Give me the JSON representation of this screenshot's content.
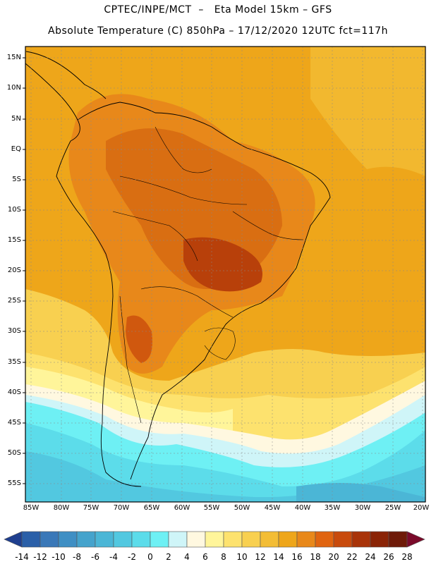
{
  "header": {
    "line1": "CPTEC/INPE/MCT  –   Eta Model 15km – GFS",
    "line2": "Absolute Temperature (C) 850hPa – 17/12/2020 12UTC fct=117h"
  },
  "map": {
    "lat_labels": [
      "15N",
      "10N",
      "5N",
      "EQ",
      "5S",
      "10S",
      "15S",
      "20S",
      "25S",
      "30S",
      "35S",
      "40S",
      "45S",
      "50S",
      "55S"
    ],
    "lon_labels": [
      "85W",
      "80W",
      "75W",
      "70W",
      "65W",
      "60W",
      "55W",
      "50W",
      "45W",
      "40W",
      "35W",
      "30W",
      "25W",
      "20W"
    ]
  },
  "legend": {
    "labels": [
      "-14",
      "-12",
      "-10",
      "-8",
      "-6",
      "-4",
      "-2",
      "0",
      "2",
      "4",
      "6",
      "8",
      "10",
      "12",
      "14",
      "16",
      "18",
      "20",
      "22",
      "24",
      "26",
      "28"
    ],
    "colors": [
      "#1f3f8f",
      "#2a5fa8",
      "#3a78b8",
      "#3f8fc4",
      "#45a3cc",
      "#4bb6d6",
      "#52c8e0",
      "#5cdcea",
      "#6ef0f4",
      "#cff5f8",
      "#fff8e0",
      "#fff59a",
      "#fde26e",
      "#f8d050",
      "#f3bd35",
      "#eea61a",
      "#e8881a",
      "#e06410",
      "#c84a0c",
      "#a83308",
      "#8a2406",
      "#6e1a08",
      "#7a0a2a"
    ]
  }
}
